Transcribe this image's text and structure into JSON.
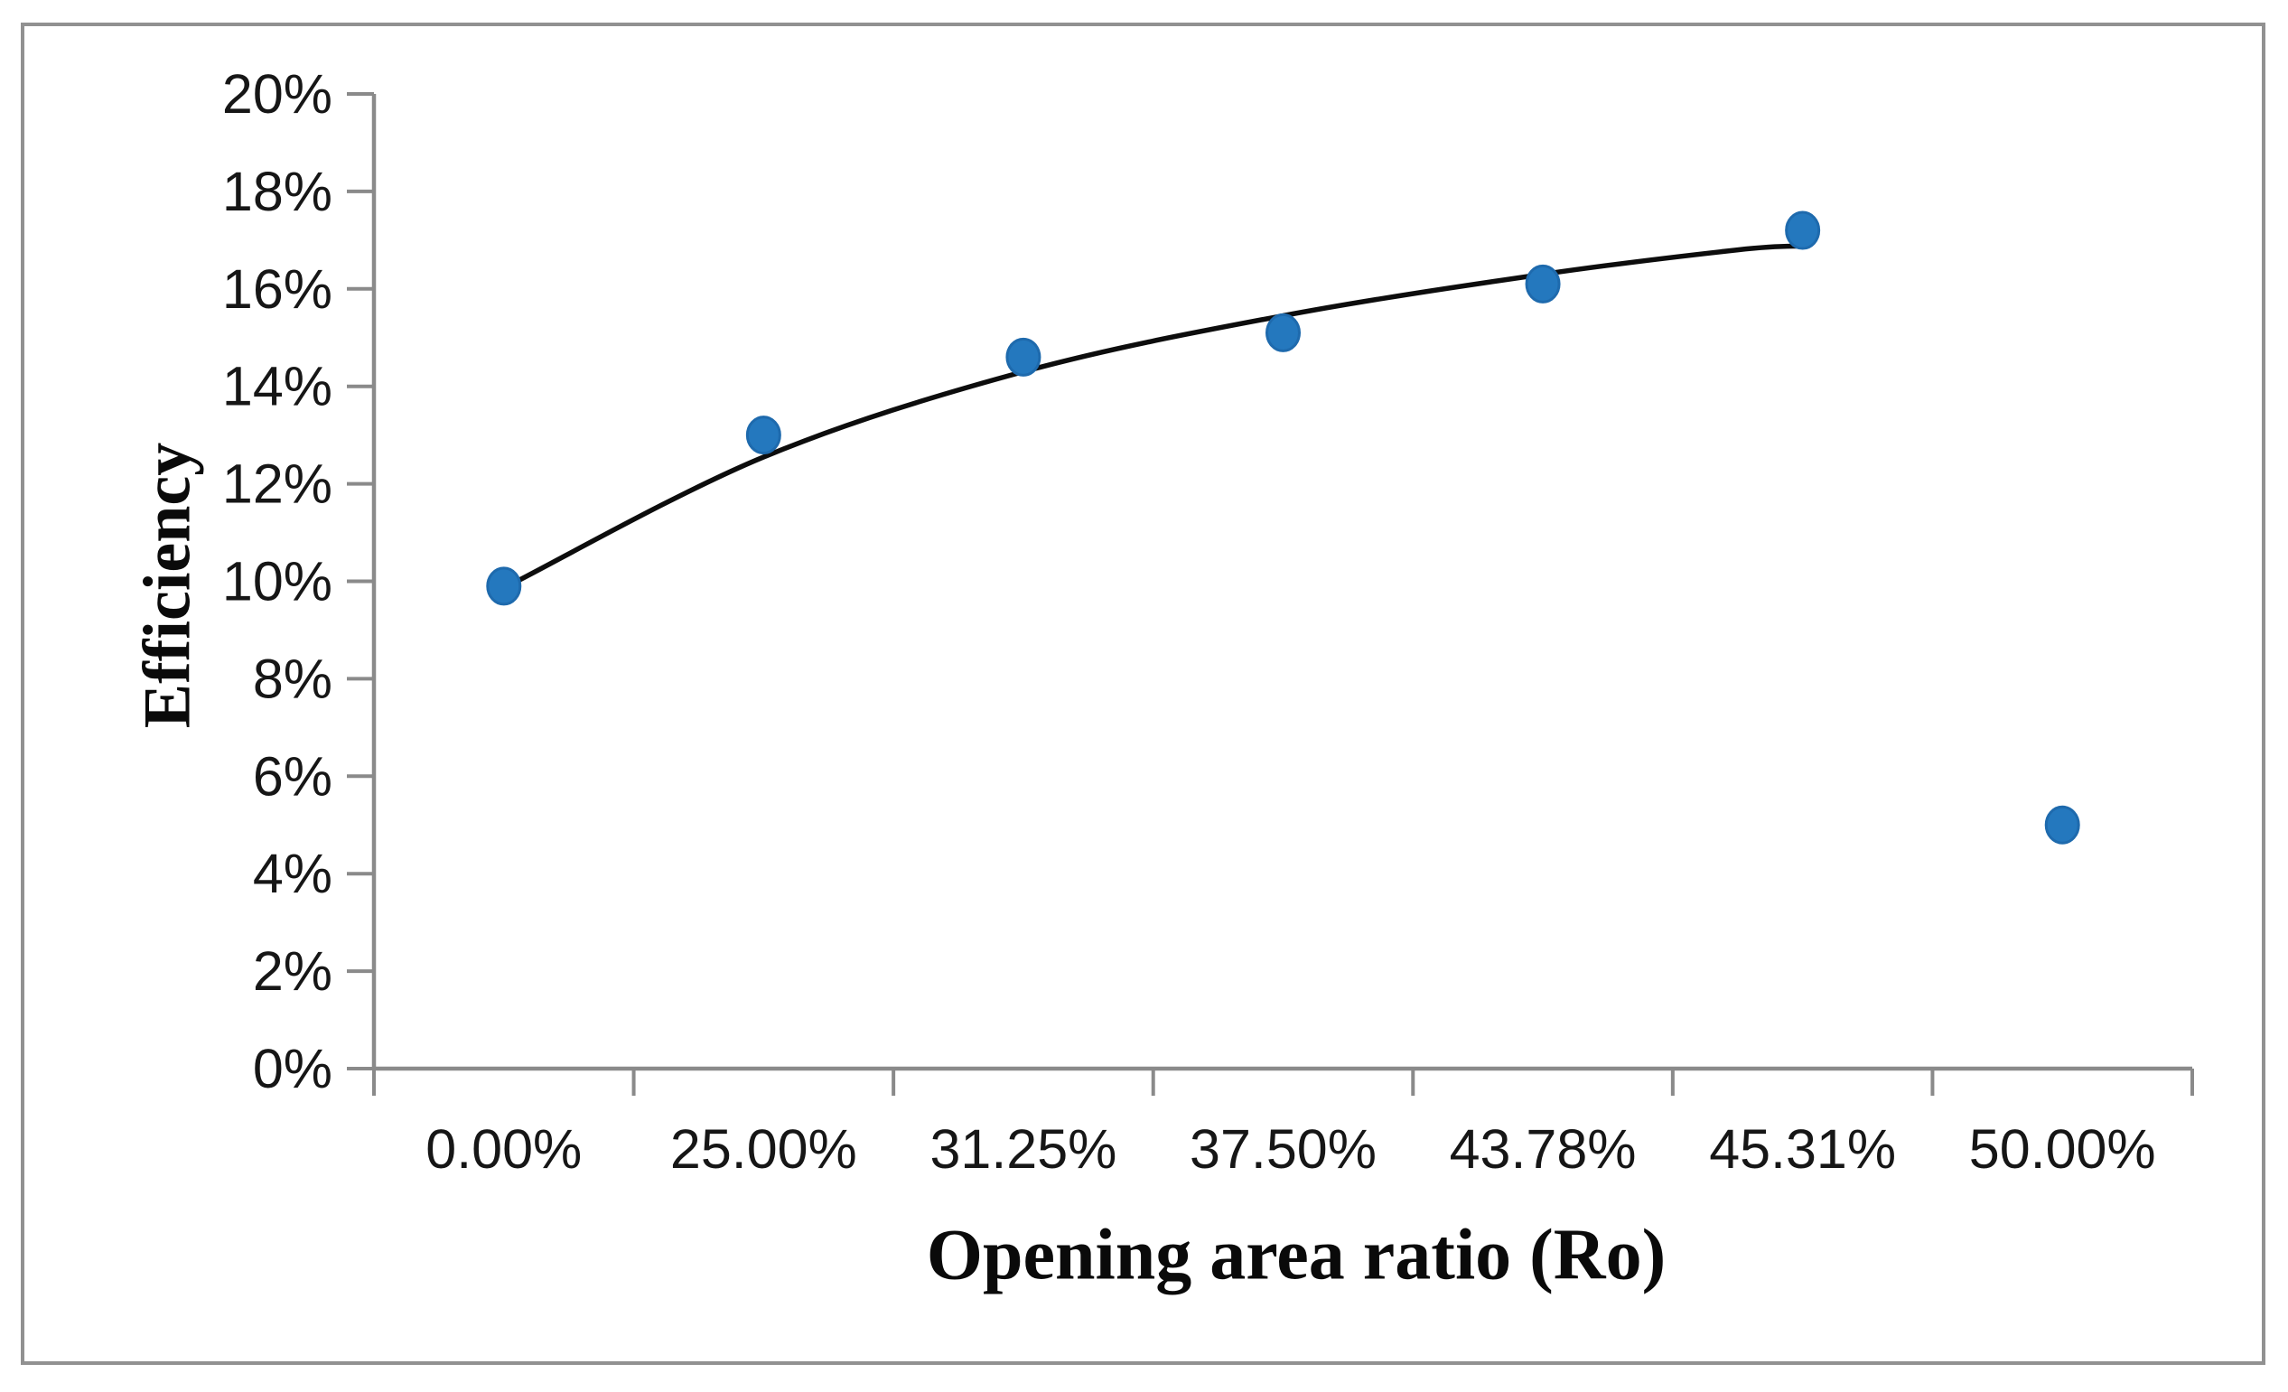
{
  "figure": {
    "y_axis_title": "Efficiency",
    "x_axis_title": "Opening area ratio (Ro)"
  },
  "colors": {
    "marker_fill": "#2478BE",
    "marker_edge": "#1E6AAD",
    "trend_line": "#0d0d0d",
    "axis_line": "#8a8a8a",
    "tick_text": "#161616",
    "frame_border": "#919191",
    "background": "#ffffff"
  },
  "chart_data": {
    "type": "scatter",
    "title": "",
    "xlabel": "Opening area ratio (Ro)",
    "ylabel": "Efficiency",
    "categories": [
      "0.00%",
      "25.00%",
      "31.25%",
      "37.50%",
      "43.78%",
      "45.31%",
      "50.00%"
    ],
    "series": [
      {
        "name": "Efficiency",
        "values": [
          9.9,
          13.0,
          14.6,
          15.1,
          16.1,
          17.2,
          5.0
        ]
      }
    ],
    "y_ticks": [
      "0%",
      "2%",
      "4%",
      "6%",
      "8%",
      "10%",
      "12%",
      "14%",
      "16%",
      "18%",
      "20%"
    ],
    "ylim": [
      0,
      20
    ],
    "grid": false,
    "legend": "none",
    "trendline": {
      "style": "polynomial-fit",
      "note": "black curve fitted through first six points, flattening near its end",
      "points_t": [
        0.05,
        1,
        2,
        3,
        4,
        4.75,
        5.0
      ],
      "points_v": [
        10.0,
        12.55,
        14.3,
        15.45,
        16.3,
        16.8,
        16.88
      ]
    }
  }
}
